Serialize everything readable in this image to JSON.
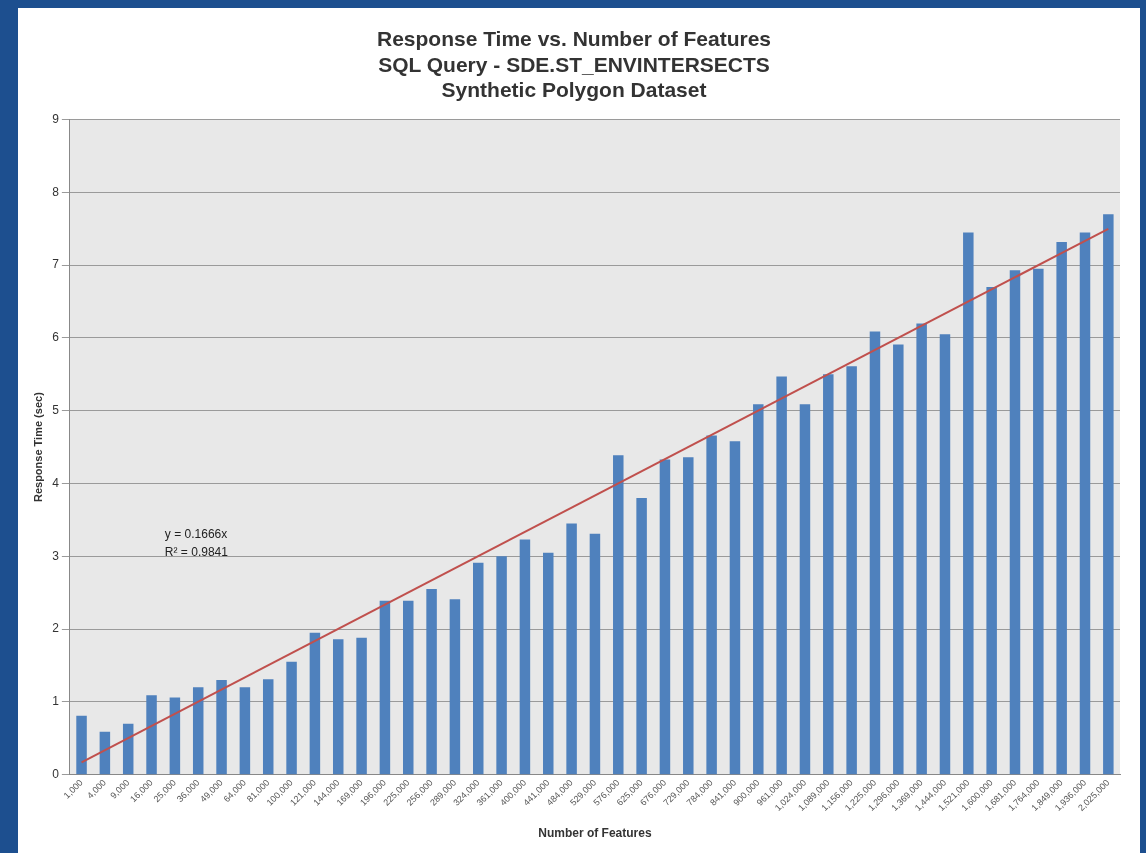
{
  "chart_data": {
    "type": "bar",
    "title": "Response Time vs. Number of Features",
    "subtitle": "SQL Query - SDE.ST_ENVINTERSECTS\nSynthetic Polygon Dataset",
    "xlabel": "Number of Features",
    "ylabel": "Response Time (sec)",
    "categories": [
      "1,000",
      "4,000",
      "9,000",
      "16,000",
      "25,000",
      "36,000",
      "49,000",
      "64,000",
      "81,000",
      "100,000",
      "121,000",
      "144,000",
      "169,000",
      "196,000",
      "225,000",
      "256,000",
      "289,000",
      "324,000",
      "361,000",
      "400,000",
      "441,000",
      "484,000",
      "529,000",
      "576,000",
      "625,000",
      "676,000",
      "729,000",
      "784,000",
      "841,000",
      "900,000",
      "961,000",
      "1,024,000",
      "1,089,000",
      "1,156,000",
      "1,225,000",
      "1,296,000",
      "1,369,000",
      "1,444,000",
      "1,521,000",
      "1,600,000",
      "1,681,000",
      "1,764,000",
      "1,849,000",
      "1,936,000",
      "2,025,000"
    ],
    "series": [
      {
        "color": "#4f81bd",
        "values": [
          0.81,
          0.59,
          0.7,
          1.09,
          1.06,
          1.2,
          1.3,
          1.2,
          1.31,
          1.55,
          1.95,
          1.86,
          1.88,
          2.39,
          2.39,
          2.55,
          2.41,
          2.91,
          3.0,
          3.23,
          3.05,
          3.45,
          3.31,
          4.39,
          3.8,
          4.33,
          4.36,
          4.66,
          4.58,
          5.09,
          5.47,
          5.09,
          5.5,
          5.61,
          6.09,
          5.91,
          6.2,
          6.05,
          7.45,
          6.7,
          6.93,
          6.95,
          7.32,
          7.45,
          7.7
        ]
      },
      {
        "type": "line",
        "color": "#c0504d",
        "x": [
          "1,000",
          "2,025,000"
        ],
        "values": [
          0.17,
          7.5
        ],
        "marker": "none"
      }
    ],
    "ylim": [
      0,
      9
    ],
    "yticks": [
      0,
      1,
      2,
      3,
      4,
      5,
      6,
      7,
      8,
      9
    ],
    "grid": "y",
    "legend": false,
    "annotations": [
      "y = 0.1666x",
      "R² = 0.9841"
    ]
  }
}
